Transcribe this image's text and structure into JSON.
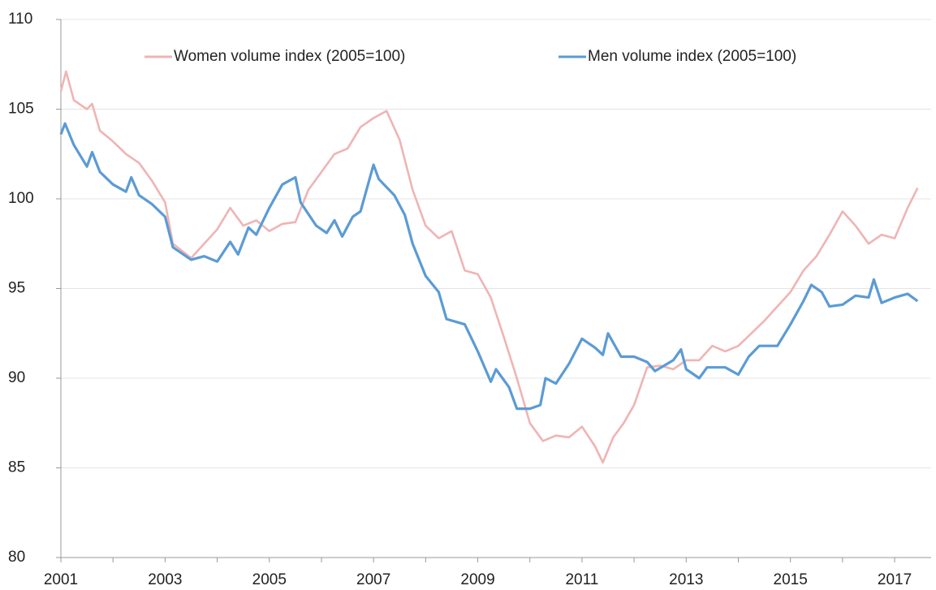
{
  "chart_data": {
    "type": "line",
    "xlim": [
      2001,
      2017.7
    ],
    "xticks": [
      2001,
      2003,
      2005,
      2007,
      2009,
      2011,
      2013,
      2015,
      2017
    ],
    "ylim": [
      80,
      110
    ],
    "yticks": [
      80,
      85,
      90,
      95,
      100,
      105,
      110
    ],
    "grid": true,
    "legend": "top",
    "series": [
      {
        "name": "Women volume index (2005=100)",
        "color": "#efb4b4",
        "x": [
          2001.0,
          2001.1,
          2001.25,
          2001.5,
          2001.6,
          2001.75,
          2002.0,
          2002.25,
          2002.5,
          2002.75,
          2003.0,
          2003.15,
          2003.5,
          2003.75,
          2004.0,
          2004.25,
          2004.5,
          2004.75,
          2005.0,
          2005.25,
          2005.5,
          2005.75,
          2006.0,
          2006.25,
          2006.5,
          2006.75,
          2007.0,
          2007.25,
          2007.5,
          2007.75,
          2008.0,
          2008.25,
          2008.5,
          2008.75,
          2009.0,
          2009.25,
          2009.5,
          2009.75,
          2010.0,
          2010.25,
          2010.5,
          2010.75,
          2011.0,
          2011.25,
          2011.4,
          2011.6,
          2011.8,
          2012.0,
          2012.25,
          2012.5,
          2012.75,
          2013.0,
          2013.25,
          2013.5,
          2013.75,
          2014.0,
          2014.25,
          2014.5,
          2014.75,
          2015.0,
          2015.25,
          2015.5,
          2015.75,
          2016.0,
          2016.25,
          2016.5,
          2016.75,
          2017.0,
          2017.25,
          2017.44
        ],
        "values": [
          106.0,
          107.1,
          105.5,
          105.0,
          105.3,
          103.8,
          103.2,
          102.5,
          102.0,
          101.0,
          99.8,
          97.5,
          96.7,
          97.5,
          98.3,
          99.5,
          98.5,
          98.8,
          98.2,
          98.6,
          98.7,
          100.5,
          101.5,
          102.5,
          102.8,
          104.0,
          104.5,
          104.9,
          103.3,
          100.5,
          98.5,
          97.8,
          98.2,
          96.0,
          95.8,
          94.5,
          92.3,
          90.0,
          87.5,
          86.5,
          86.8,
          86.7,
          87.3,
          86.2,
          85.3,
          86.7,
          87.5,
          88.5,
          90.6,
          90.7,
          90.5,
          91.0,
          91.0,
          91.8,
          91.5,
          91.8,
          92.5,
          93.2,
          94.0,
          94.8,
          96.0,
          96.8,
          98.0,
          99.3,
          98.5,
          97.5,
          98.0,
          97.8,
          99.5,
          100.6
        ]
      },
      {
        "name": "Men volume index (2005=100)",
        "color": "#5b9bd5",
        "x": [
          2001.0,
          2001.08,
          2001.25,
          2001.5,
          2001.6,
          2001.75,
          2002.0,
          2002.25,
          2002.35,
          2002.5,
          2002.75,
          2003.0,
          2003.15,
          2003.5,
          2003.75,
          2004.0,
          2004.25,
          2004.4,
          2004.6,
          2004.75,
          2005.0,
          2005.25,
          2005.5,
          2005.6,
          2005.9,
          2006.1,
          2006.25,
          2006.4,
          2006.6,
          2006.75,
          2007.0,
          2007.1,
          2007.4,
          2007.6,
          2007.75,
          2008.0,
          2008.25,
          2008.4,
          2008.75,
          2009.0,
          2009.25,
          2009.35,
          2009.6,
          2009.75,
          2010.0,
          2010.2,
          2010.3,
          2010.5,
          2010.75,
          2011.0,
          2011.25,
          2011.4,
          2011.5,
          2011.75,
          2012.0,
          2012.25,
          2012.4,
          2012.75,
          2012.9,
          2013.0,
          2013.25,
          2013.4,
          2013.75,
          2014.0,
          2014.2,
          2014.4,
          2014.75,
          2015.0,
          2015.25,
          2015.4,
          2015.6,
          2015.75,
          2016.0,
          2016.25,
          2016.5,
          2016.6,
          2016.75,
          2017.0,
          2017.25,
          2017.44
        ],
        "values": [
          103.6,
          104.2,
          103.0,
          101.8,
          102.6,
          101.5,
          100.8,
          100.4,
          101.2,
          100.2,
          99.7,
          99.0,
          97.3,
          96.6,
          96.8,
          96.5,
          97.6,
          96.9,
          98.4,
          98.0,
          99.5,
          100.8,
          101.2,
          99.8,
          98.5,
          98.1,
          98.8,
          97.9,
          99.0,
          99.3,
          101.9,
          101.1,
          100.2,
          99.1,
          97.5,
          95.7,
          94.8,
          93.3,
          93.0,
          91.5,
          89.8,
          90.5,
          89.5,
          88.3,
          88.3,
          88.5,
          90.0,
          89.7,
          90.8,
          92.2,
          91.7,
          91.3,
          92.5,
          91.2,
          91.2,
          90.9,
          90.4,
          91.0,
          91.6,
          90.5,
          90.0,
          90.6,
          90.6,
          90.2,
          91.2,
          91.8,
          91.8,
          93.0,
          94.3,
          95.2,
          94.8,
          94.0,
          94.1,
          94.6,
          94.5,
          95.5,
          94.2,
          94.5,
          94.7,
          94.3
        ]
      }
    ]
  }
}
